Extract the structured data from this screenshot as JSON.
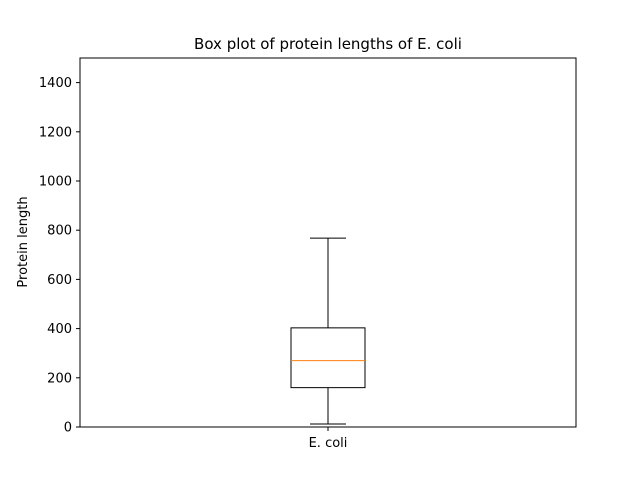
{
  "chart_data": {
    "type": "box",
    "title": "Box plot of protein lengths of E. coli",
    "xlabel": "",
    "ylabel": "Protein length",
    "ylim": [
      0,
      1500
    ],
    "yticks": [
      0,
      200,
      400,
      600,
      800,
      1000,
      1200,
      1400
    ],
    "grid": false,
    "categories": [
      "E. coli"
    ],
    "boxes": [
      {
        "category": "E. coli",
        "whisker_low": 12,
        "q1": 160,
        "median": 270,
        "q3": 403,
        "whisker_high": 768
      }
    ],
    "colors": {
      "box": "#000000",
      "median": "#ff7f0e",
      "frame": "#000000"
    }
  }
}
